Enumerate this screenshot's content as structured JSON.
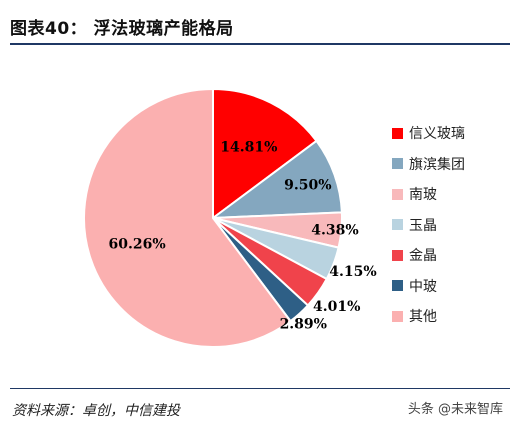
{
  "header": {
    "title": "图表40： 浮法玻璃产能格局"
  },
  "footer": {
    "source": "资料来源：卓创，中信建投",
    "watermark": "头条 @未来智库"
  },
  "colors": {
    "信义玻璃": "#ff0000",
    "旗滨集团": "#84a7bf",
    "南玻": "#f8b9bb",
    "玉晶": "#b9d3e0",
    "金晶": "#f0434b",
    "中玻": "#2e5f86",
    "其他": "#fbb0b0"
  },
  "chart_data": {
    "type": "pie",
    "title": "",
    "legend_position": "right",
    "series": [
      {
        "categories": [
          "信义玻璃",
          "旗滨集团",
          "南玻",
          "玉晶",
          "金晶",
          "中玻",
          "其他"
        ],
        "values": [
          14.81,
          9.5,
          4.38,
          4.15,
          4.01,
          2.89,
          60.26
        ],
        "labels": [
          "14.81%",
          "9.50%",
          "4.38%",
          "4.15%",
          "4.01%",
          "2.89%",
          "60.26%"
        ]
      }
    ]
  }
}
